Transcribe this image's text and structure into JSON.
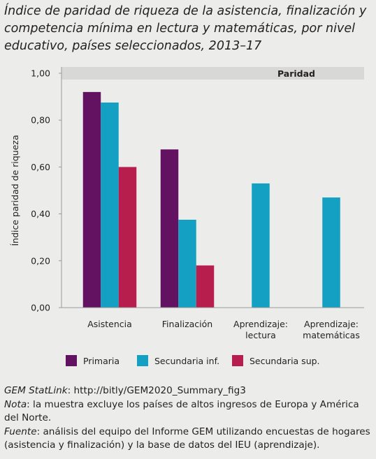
{
  "title_lines": [
    "Índice de paridad de riqueza de la asistencia, finalización y",
    "competencia mínima en lectura y matemáticas, por nivel",
    "educativo, países seleccionados, 2013–17"
  ],
  "colors": {
    "primaria": "#631262",
    "secundaria_inf": "#14a0c2",
    "secundaria_sup": "#b81e4d",
    "parity_band": "#d8d9d6",
    "axis": "#9a9a9a"
  },
  "chart_data": {
    "type": "bar",
    "ylabel": "Índice paridad de riqueza",
    "ylim": [
      0,
      1.0
    ],
    "yticks": [
      "0,00",
      "0,20",
      "0,40",
      "0,60",
      "0,80",
      "1,00"
    ],
    "parity_label": "Paridad",
    "categories": [
      [
        "Asistencia"
      ],
      [
        "Finalización"
      ],
      [
        "Aprendizaje:",
        "lectura"
      ],
      [
        "Aprendizaje:",
        "matemáticas"
      ]
    ],
    "series": [
      {
        "name": "Primaria",
        "color_key": "primaria",
        "values": [
          0.92,
          0.675,
          null,
          null
        ]
      },
      {
        "name": "Secundaria inf.",
        "color_key": "secundaria_inf",
        "values": [
          0.875,
          0.375,
          0.53,
          0.47
        ]
      },
      {
        "name": "Secundaria sup.",
        "color_key": "secundaria_sup",
        "values": [
          0.6,
          0.18,
          null,
          null
        ]
      }
    ],
    "legend_position": "bottom"
  },
  "footer": {
    "statlink_lead": "GEM StatLink",
    "statlink_text": ": http://bitly/GEM2020_Summary_fig3",
    "note_lead": "Nota",
    "note_text": ": la muestra excluye los países de altos ingresos de Europa y América del Norte.",
    "source_lead": "Fuente",
    "source_text": ": análisis del equipo del Informe GEM utilizando encuestas de hogares (asistencia y finalización) y la base de datos del IEU (aprendizaje)."
  }
}
